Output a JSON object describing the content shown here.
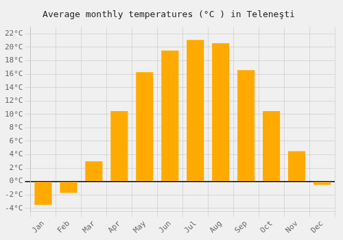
{
  "chart_data": {
    "type": "bar",
    "title": "Average monthly temperatures (°C ) in Teleneşti",
    "categories": [
      "Jan",
      "Feb",
      "Mar",
      "Apr",
      "May",
      "Jun",
      "Jul",
      "Aug",
      "Sep",
      "Oct",
      "Nov",
      "Dec"
    ],
    "values": [
      -3.5,
      -1.7,
      3.0,
      10.5,
      16.3,
      19.5,
      21.1,
      20.6,
      16.6,
      10.5,
      4.5,
      -0.5
    ],
    "color": "#FFAA00",
    "ylim": [
      -4.5,
      23
    ],
    "yticks": [
      {
        "value": -4,
        "label": "-4°C"
      },
      {
        "value": -2,
        "label": "-2°C"
      },
      {
        "value": 0,
        "label": "0°C"
      },
      {
        "value": 2,
        "label": "2°C"
      },
      {
        "value": 4,
        "label": "4°C"
      },
      {
        "value": 6,
        "label": "6°C"
      },
      {
        "value": 8,
        "label": "8°C"
      },
      {
        "value": 10,
        "label": "10°C"
      },
      {
        "value": 12,
        "label": "12°C"
      },
      {
        "value": 14,
        "label": "14°C"
      },
      {
        "value": 16,
        "label": "16°C"
      },
      {
        "value": 18,
        "label": "18°C"
      },
      {
        "value": 20,
        "label": "20°C"
      },
      {
        "value": 22,
        "label": "22°C"
      }
    ],
    "grid": true
  }
}
